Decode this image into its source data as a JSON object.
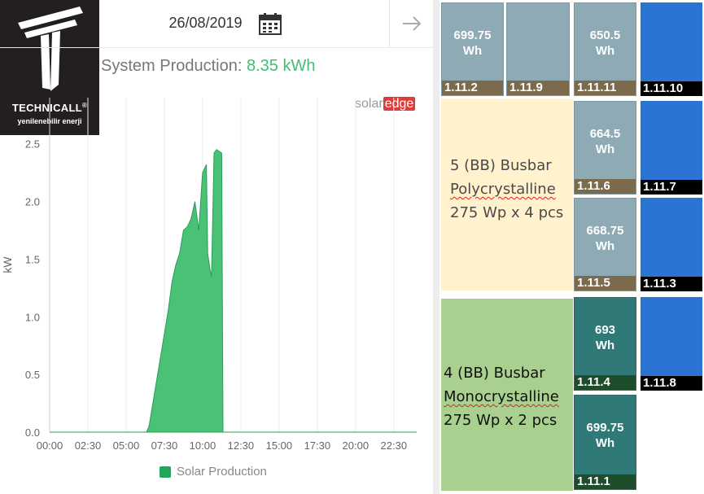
{
  "logo": {
    "brand": "TECHNICALL",
    "registered": "®",
    "tagline": "yenilenebilir enerji"
  },
  "header": {
    "date": "26/08/2019",
    "calendar_icon": "calendar-icon",
    "next_icon": "arrow-right-icon"
  },
  "summary": {
    "label": "System Production: ",
    "value": "8.35 kWh"
  },
  "solaredge": {
    "part1": "solar",
    "part2": "edge"
  },
  "chart_data": {
    "type": "area",
    "ylabel": "kW",
    "xlabel": "",
    "ylim": [
      0,
      2.9
    ],
    "yticks": [
      "0.0",
      "0.5",
      "1.0",
      "1.5",
      "2.0",
      "2.5"
    ],
    "xticks": [
      "00:00",
      "02:30",
      "05:00",
      "07:30",
      "10:00",
      "12:30",
      "15:00",
      "17:30",
      "20:00",
      "22:30"
    ],
    "grid": true,
    "color": "#3fbf6f",
    "series": [
      {
        "name": "Solar Production",
        "points": [
          [
            "00:00",
            0
          ],
          [
            "06:20",
            0
          ],
          [
            "06:30",
            0.05
          ],
          [
            "06:45",
            0.25
          ],
          [
            "07:00",
            0.45
          ],
          [
            "07:15",
            0.65
          ],
          [
            "07:30",
            0.85
          ],
          [
            "07:45",
            1.05
          ],
          [
            "08:00",
            1.3
          ],
          [
            "08:15",
            1.45
          ],
          [
            "08:30",
            1.55
          ],
          [
            "08:45",
            1.75
          ],
          [
            "09:00",
            1.78
          ],
          [
            "09:15",
            1.85
          ],
          [
            "09:30",
            2.0
          ],
          [
            "09:45",
            1.75
          ],
          [
            "10:00",
            2.25
          ],
          [
            "10:15",
            2.32
          ],
          [
            "10:20",
            1.55
          ],
          [
            "10:30",
            1.4
          ],
          [
            "10:35",
            1.35
          ],
          [
            "10:45",
            2.42
          ],
          [
            "10:55",
            2.45
          ],
          [
            "11:15",
            2.42
          ],
          [
            "11:20",
            0
          ],
          [
            "23:59",
            0
          ]
        ]
      }
    ]
  },
  "legend": {
    "label": "Solar Production",
    "color": "#1fa85a"
  },
  "modules": [
    {
      "id": "1.11.2",
      "value": "699.75",
      "unit": "Wh"
    },
    {
      "id": "1.11.9",
      "value": "",
      "unit": ""
    },
    {
      "id": "1.11.11",
      "value": "650.5",
      "unit": "Wh"
    },
    {
      "id": "1.11.10",
      "value": "",
      "unit": ""
    },
    {
      "id": "1.11.6",
      "value": "664.5",
      "unit": "Wh"
    },
    {
      "id": "1.11.7",
      "value": "",
      "unit": ""
    },
    {
      "id": "1.11.5",
      "value": "668.75",
      "unit": "Wh"
    },
    {
      "id": "1.11.3",
      "value": "",
      "unit": ""
    },
    {
      "id": "1.11.4",
      "value": "693",
      "unit": "Wh"
    },
    {
      "id": "1.11.8",
      "value": "",
      "unit": ""
    },
    {
      "id": "1.11.1",
      "value": "699.75",
      "unit": "Wh"
    }
  ],
  "poly_group": {
    "line1": "5 (BB) Busbar",
    "line2": "Polycrystalline",
    "line3": "275 Wp x 4 pcs"
  },
  "mono_group": {
    "line1": "4 (BB) Busbar",
    "line2": "Monocrystalline",
    "line3": "275 Wp x 2 pcs"
  }
}
